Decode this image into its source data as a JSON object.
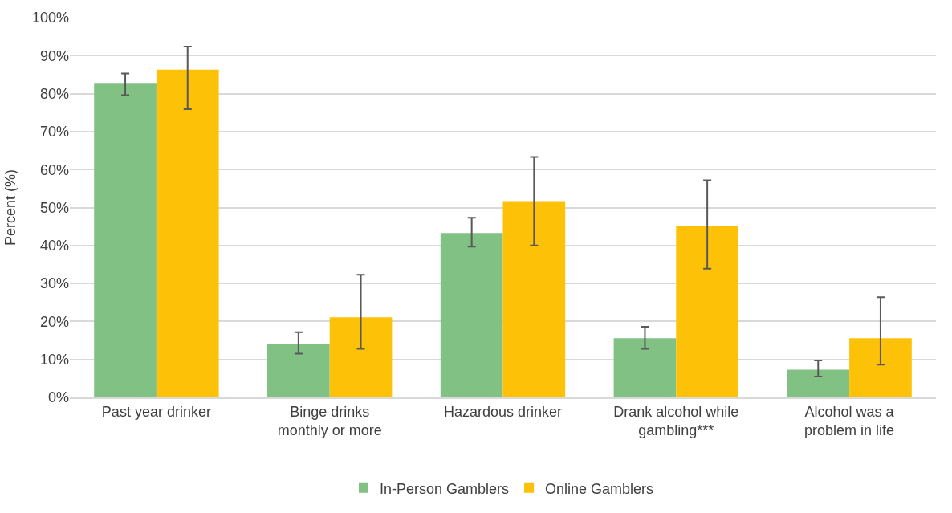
{
  "chart_data": {
    "type": "bar",
    "ylabel": "Percent (%)",
    "categories": [
      "Past year drinker",
      "Binge drinks\nmonthly or more",
      "Hazardous drinker",
      "Drank alcohol while\ngambling***",
      "Alcohol was a\nproblem in life"
    ],
    "series": [
      {
        "name": "In-Person Gamblers",
        "color": "#81c184",
        "values": [
          82.6,
          14.1,
          43.3,
          15.6,
          7.3
        ],
        "errors": [
          [
            79.6,
            85.3
          ],
          [
            11.5,
            17.2
          ],
          [
            39.7,
            47.3
          ],
          [
            12.8,
            18.6
          ],
          [
            5.5,
            9.7
          ]
        ]
      },
      {
        "name": "Online Gamblers",
        "color": "#fdc107",
        "values": [
          86.3,
          21.1,
          51.7,
          45.1,
          15.6
        ],
        "errors": [
          [
            75.9,
            92.4
          ],
          [
            12.8,
            32.3
          ],
          [
            40.0,
            63.3
          ],
          [
            33.9,
            57.2
          ],
          [
            8.6,
            26.4
          ]
        ]
      }
    ],
    "ylim": [
      0,
      100
    ],
    "yticks": [
      {
        "value": 0,
        "label": "0%"
      },
      {
        "value": 10,
        "label": "10%"
      },
      {
        "value": 20,
        "label": "20%"
      },
      {
        "value": 30,
        "label": "30%"
      },
      {
        "value": 40,
        "label": "40%"
      },
      {
        "value": 50,
        "label": "50%"
      },
      {
        "value": 60,
        "label": "60%"
      },
      {
        "value": 70,
        "label": "70%"
      },
      {
        "value": 80,
        "label": "80%"
      },
      {
        "value": 90,
        "label": "90%"
      },
      {
        "value": 100,
        "label": "100%"
      }
    ],
    "grid": "y",
    "legend": "bottom"
  }
}
